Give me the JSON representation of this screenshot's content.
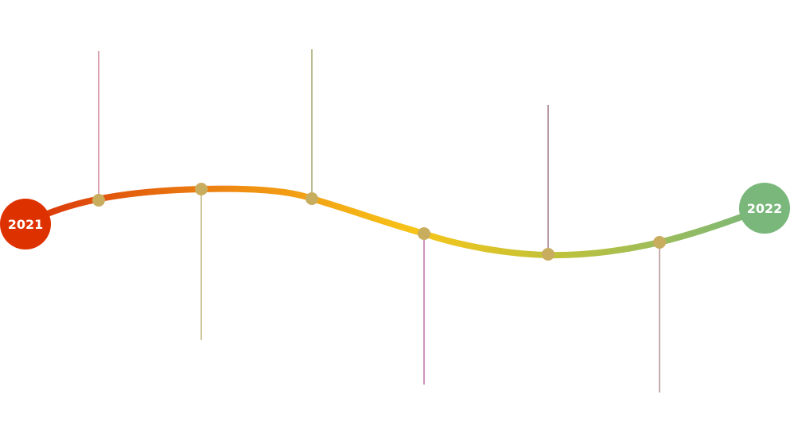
{
  "timeline": {
    "start_year": "2021",
    "end_year": "2022",
    "colors": {
      "start_circle": "#de3100",
      "end_circle": "#79b77b",
      "milestone_dot": "#c9ad5f",
      "curve_gradient": [
        "#d9330a",
        "#f09012",
        "#f7c518",
        "#bfc23a",
        "#79b77b"
      ]
    },
    "milestones": [
      {
        "id": "m1",
        "connector": "up",
        "line_color": "#b5455f"
      },
      {
        "id": "m2",
        "connector": "down",
        "line_color": "#9a8f2c"
      },
      {
        "id": "m3",
        "connector": "up",
        "line_color": "#7a7a25"
      },
      {
        "id": "m4",
        "connector": "down",
        "line_color": "#9b2e78"
      },
      {
        "id": "m5",
        "connector": "up",
        "line_color": "#6b3040"
      },
      {
        "id": "m6",
        "connector": "down",
        "line_color": "#8c5a5a"
      }
    ]
  }
}
